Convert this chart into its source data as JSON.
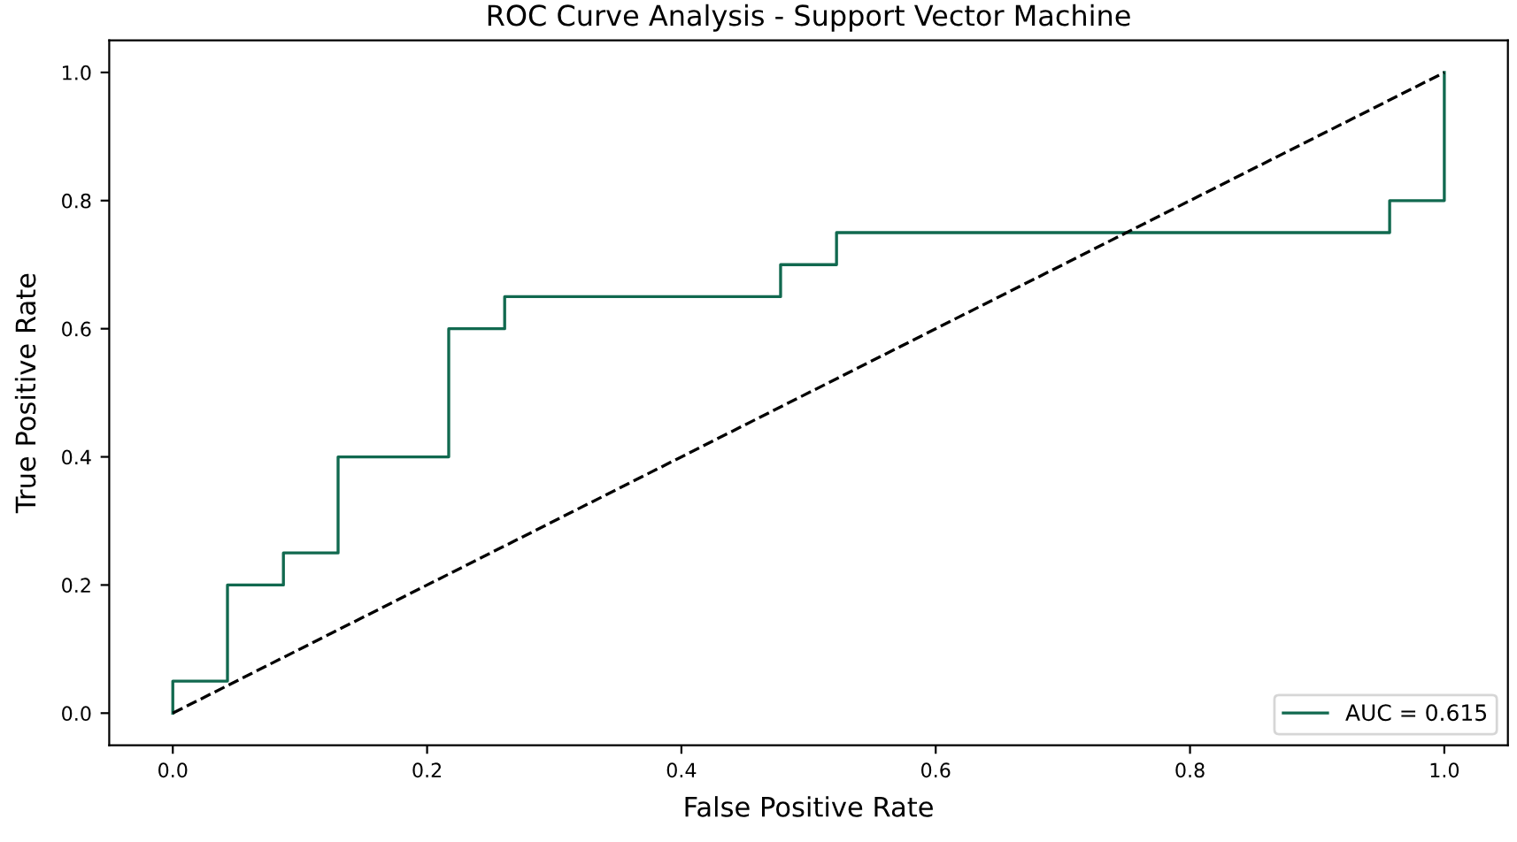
{
  "chart_data": {
    "type": "step",
    "title": "ROC Curve Analysis - Support Vector Machine",
    "xlabel": "False Positive Rate",
    "ylabel": "True Positive Rate",
    "series": [
      {
        "name": "AUC = 0.615",
        "color": "#11694f",
        "x": [
          0,
          0,
          0.043,
          0.087,
          0.13,
          0.217,
          0.261,
          0.478,
          0.522,
          0.957,
          1.0
        ],
        "values": [
          0,
          0.05,
          0.2,
          0.25,
          0.4,
          0.6,
          0.65,
          0.7,
          0.75,
          0.8,
          1.0
        ]
      },
      {
        "type": "line",
        "color": "#000000",
        "line_style": "dashed",
        "x": [
          0,
          1
        ],
        "values": [
          0,
          1
        ]
      }
    ],
    "xlim": [
      -0.05,
      1.05
    ],
    "ylim": [
      -0.05,
      1.05
    ],
    "xticks": [
      {
        "value": 0,
        "label": "0.0"
      },
      {
        "value": 0.2,
        "label": "0.2"
      },
      {
        "value": 0.4,
        "label": "0.4"
      },
      {
        "value": 0.6,
        "label": "0.6"
      },
      {
        "value": 0.8,
        "label": "0.8"
      },
      {
        "value": 1.0,
        "label": "1.0"
      }
    ],
    "yticks": [
      {
        "value": 0,
        "label": "0.0"
      },
      {
        "value": 0.2,
        "label": "0.2"
      },
      {
        "value": 0.4,
        "label": "0.4"
      },
      {
        "value": 0.6,
        "label": "0.6"
      },
      {
        "value": 0.8,
        "label": "0.8"
      },
      {
        "value": 1.0,
        "label": "1.0"
      }
    ],
    "grid": false,
    "legend": "bottom right"
  }
}
